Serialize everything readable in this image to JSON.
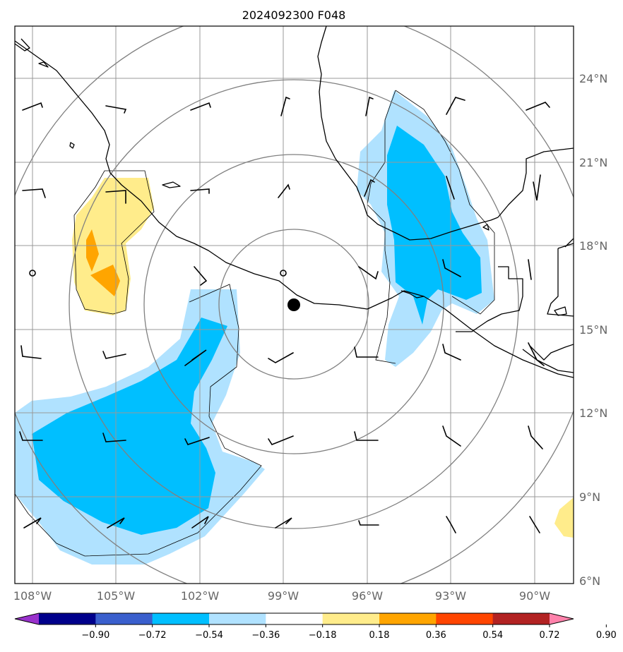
{
  "title": "2024092300 F048",
  "longitude_labels": [
    "108°W",
    "105°W",
    "102°W",
    "99°W",
    "96°W",
    "93°W",
    "90°W"
  ],
  "latitude_labels": [
    "24°N",
    "21°N",
    "18°N",
    "15°N",
    "12°N",
    "9°N",
    "6°N"
  ],
  "colorbar": {
    "labels": [
      "−0.90",
      "−0.72",
      "−0.54",
      "−0.36",
      "−0.18",
      "0.18",
      "0.36",
      "0.54",
      "0.72",
      "0.90"
    ],
    "colors": [
      "#9932cc",
      "#00008b",
      "#3a5fcd",
      "#00bfff",
      "#b0e2ff",
      "#ffffff",
      "#ffec8b",
      "#ffa500",
      "#ff4500",
      "#b22222",
      "#ff82ab"
    ]
  },
  "fill_colors": {
    "light_blue": "#b0e2ff",
    "deep_sky_blue": "#00bfff",
    "light_yellow": "#ffec8b",
    "orange": "#ffa500"
  },
  "center_marker": "black-dot",
  "range_rings": 4
}
